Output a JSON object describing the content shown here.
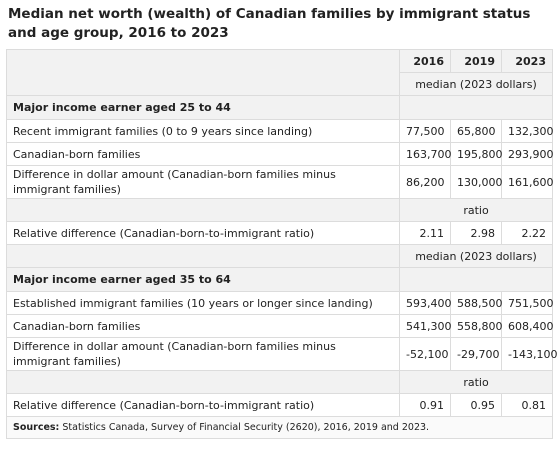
{
  "title": "Median net worth (wealth) of Canadian families by immigrant status and age group, 2016 to 2023",
  "columns": [
    "2016",
    "2019",
    "2023"
  ],
  "unit_median": "median (2023 dollars)",
  "unit_ratio": "ratio",
  "sections": [
    {
      "heading": "Major income earner aged 25 to 44",
      "rows": [
        {
          "label": "Recent immigrant families (0 to 9 years since landing)",
          "values": [
            "77,500",
            "65,800",
            "132,300"
          ]
        },
        {
          "label": "Canadian-born families",
          "values": [
            "163,700",
            "195,800",
            "293,900"
          ]
        },
        {
          "label": "Difference in dollar amount (Canadian-born families minus immigrant families)",
          "values": [
            "86,200",
            "130,000",
            "161,600"
          ]
        }
      ],
      "ratio_row": {
        "label": "Relative difference (Canadian-born-to-immigrant ratio)",
        "values": [
          "2.11",
          "2.98",
          "2.22"
        ]
      }
    },
    {
      "heading": "Major income earner aged 35 to 64",
      "rows": [
        {
          "label": "Established immigrant families (10 years or longer since landing)",
          "values": [
            "593,400",
            "588,500",
            "751,500"
          ]
        },
        {
          "label": "Canadian-born families",
          "values": [
            "541,300",
            "558,800",
            "608,400"
          ]
        },
        {
          "label": "Difference in dollar amount (Canadian-born families minus immigrant families)",
          "values": [
            "-52,100",
            "-29,700",
            "-143,100"
          ]
        }
      ],
      "ratio_row": {
        "label": "Relative difference (Canadian-born-to-immigrant ratio)",
        "values": [
          "0.91",
          "0.95",
          "0.81"
        ]
      }
    }
  ],
  "source_label": "Sources:",
  "source_text": "Statistics Canada, Survey of Financial Security (2620), 2016, 2019 and 2023."
}
